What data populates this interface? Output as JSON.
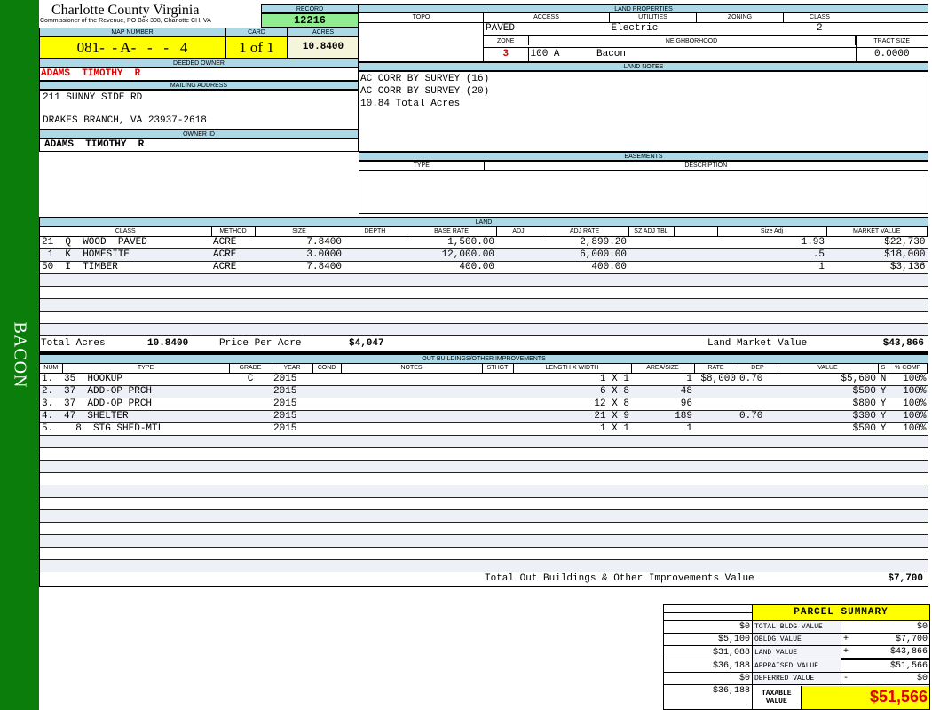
{
  "sidebar": {
    "label": "BACON",
    "color": "#0a7d0a"
  },
  "header": {
    "title": "Charlotte County Virginia",
    "subtitle": "Commissioner of the Revenue, PO Box 308, Charlotte CH, VA",
    "record_label": "RECORD",
    "record": "12216"
  },
  "parcel": {
    "map_label": "MAP NUMBER",
    "map": "081-  - A-   -   -   4",
    "card_label": "CARD",
    "card": "1 of 1",
    "acres_label": "ACRES",
    "acres": "10.8400"
  },
  "owner": {
    "deeded_label": "DEEDED OWNER",
    "deeded": "ADAMS  TIMOTHY  R",
    "mailing_label": "MAILING ADDRESS",
    "address1": "211 SUNNY SIDE RD",
    "address2": "DRAKES BRANCH, VA 23937-2618",
    "owner_id_label": "OWNER ID",
    "owner_id": "ADAMS  TIMOTHY  R"
  },
  "land_properties": {
    "label": "LAND PROPERTIES",
    "cols": [
      "TOPO",
      "ACCESS",
      "UTILITIES",
      "ZONING",
      "CLASS"
    ],
    "topo": "",
    "access": "PAVED",
    "utilities": "Electric",
    "zoning": "",
    "class": "2",
    "zone_label": "ZONE",
    "neighborhood_label": "NEIGHBORHOOD",
    "tract_label": "TRACT SIZE",
    "zone": "3",
    "neighborhood_code": "100 A",
    "neighborhood": "Bacon",
    "tract_size": "0.0000"
  },
  "land_notes": {
    "label": "LAND NOTES",
    "lines": [
      "AC CORR BY SURVEY (16)",
      "AC CORR BY SURVEY (20)",
      "10.84 Total Acres"
    ]
  },
  "easements": {
    "label": "EASEMENTS",
    "type_label": "TYPE",
    "desc_label": "DESCRIPTION"
  },
  "land": {
    "label": "LAND",
    "cols": [
      "CLASS",
      "METHOD",
      "SIZE",
      "DEPTH",
      "BASE RATE",
      "ADJ",
      "ADJ RATE",
      "SZ ADJ TBL",
      "",
      "Size Adj",
      "MARKET VALUE"
    ],
    "rows": [
      [
        "21  Q  WOOD  PAVED",
        "ACRE",
        "7.8400",
        "",
        "1,500.00",
        "",
        "2,899.20",
        "",
        "",
        "1.93",
        "$22,730"
      ],
      [
        " 1  K  HOMESITE",
        "ACRE",
        "3.0000",
        "",
        "12,000.00",
        "",
        "6,000.00",
        "",
        "",
        ".5",
        "$18,000"
      ],
      [
        "50  I  TIMBER",
        "ACRE",
        "7.8400",
        "",
        "400.00",
        "",
        "400.00",
        "",
        "",
        "1",
        "$3,136"
      ]
    ],
    "total_acres_label": "Total Acres",
    "total_acres": "10.8400",
    "price_per_acre_label": "Price Per Acre",
    "price_per_acre": "$4,047",
    "market_value_label": "Land Market Value",
    "market_value": "$43,866"
  },
  "outbuildings": {
    "label": "OUT BUILDINGS/OTHER IMPROVEMENTS",
    "cols": [
      "NUM",
      "TYPE",
      "GRADE",
      "YEAR",
      "COND",
      "NOTES",
      "STHGT",
      "LENGTH X WIDTH",
      "AREA/SIZE",
      "RATE",
      "DEP",
      "VALUE",
      "S",
      "% COMP"
    ],
    "rows": [
      [
        "1.",
        "35  HOOKUP",
        "C",
        "2015",
        "",
        "",
        "",
        "1 X 1",
        "1",
        "$8,000",
        "0.70",
        "$5,600",
        "N",
        "100%"
      ],
      [
        "2.",
        "37  ADD-OP PRCH",
        "",
        "2015",
        "",
        "",
        "",
        "6 X 8",
        "48",
        "",
        "",
        "$500",
        "Y",
        "100%"
      ],
      [
        "3.",
        "37  ADD-OP PRCH",
        "",
        "2015",
        "",
        "",
        "",
        "12 X 8",
        "96",
        "",
        "",
        "$800",
        "Y",
        "100%"
      ],
      [
        "4.",
        "47  SHELTER",
        "",
        "2015",
        "",
        "",
        "",
        "21 X 9",
        "189",
        "",
        "0.70",
        "$300",
        "Y",
        "100%"
      ],
      [
        "5.",
        "  8  STG SHED-MTL",
        "",
        "2015",
        "",
        "",
        "",
        "1 X 1",
        "1",
        "",
        "",
        "$500",
        "Y",
        "100%"
      ]
    ],
    "total_label": "Total Out Buildings & Other Improvements Value",
    "total": "$7,700"
  },
  "summary": {
    "title": "PARCEL SUMMARY",
    "rows": [
      {
        "left": "$0",
        "label": "TOTAL BLDG VALUE",
        "op": "",
        "value": "$0"
      },
      {
        "left": "$5,100",
        "label": "OBLDG VALUE",
        "op": "+",
        "value": "$7,700"
      },
      {
        "left": "$31,088",
        "label": "LAND VALUE",
        "op": "+",
        "value": "$43,866"
      },
      {
        "left": "$36,188",
        "label": "APPRAISED VALUE",
        "op": "",
        "value": "$51,566"
      },
      {
        "left": "$0",
        "label": "DEFERRED VALUE",
        "op": "-",
        "value": "$0"
      }
    ],
    "taxable_left": "$36,188",
    "taxable_label": "TAXABLE VALUE",
    "taxable": "$51,566"
  }
}
